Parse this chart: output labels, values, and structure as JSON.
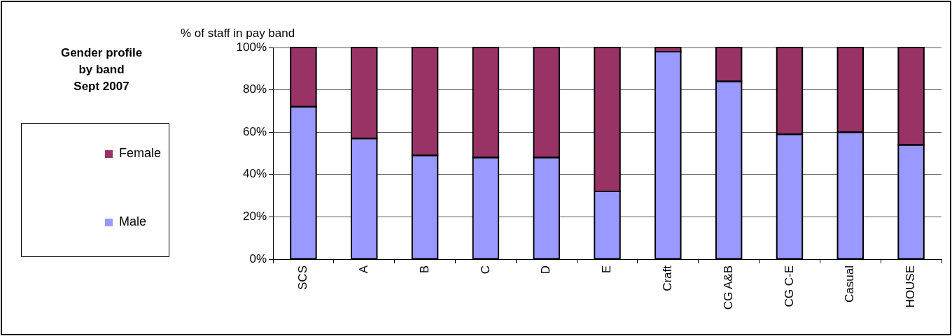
{
  "chart_data": {
    "type": "bar",
    "title": "Gender profile\nby band\nSept 2007",
    "ylabel": "% of staff in pay band",
    "categories": [
      "SCS",
      "A",
      "B",
      "C",
      "D",
      "E",
      "Craft",
      "CG A&B",
      "CG C-E",
      "Casual",
      "HOUSE"
    ],
    "series": [
      {
        "name": "Male",
        "color": "#9999ff",
        "values": [
          72,
          57,
          49,
          48,
          48,
          32,
          98,
          84,
          59,
          60,
          54
        ]
      },
      {
        "name": "Female",
        "color": "#993366",
        "values": [
          28,
          43,
          51,
          52,
          52,
          68,
          2,
          16,
          41,
          40,
          46
        ]
      }
    ],
    "stacked": true,
    "ylim": [
      0,
      100
    ],
    "yticks": [
      {
        "value": 0,
        "label": "0%"
      },
      {
        "value": 20,
        "label": "20%"
      },
      {
        "value": 40,
        "label": "40%"
      },
      {
        "value": 60,
        "label": "60%"
      },
      {
        "value": 80,
        "label": "80%"
      },
      {
        "value": 100,
        "label": "100%"
      }
    ],
    "grid": "y",
    "legend": "left"
  }
}
